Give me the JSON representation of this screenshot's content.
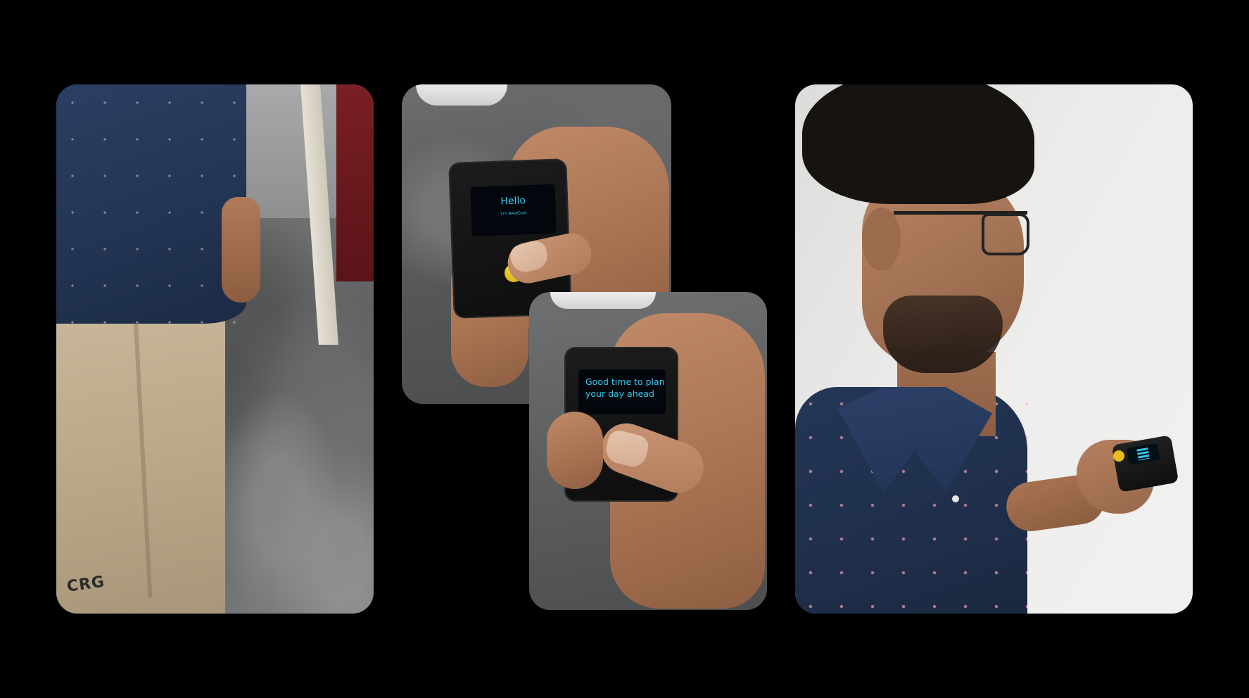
{
  "photos": [
    {
      "id": "pocket-photo"
    },
    {
      "id": "device-hello-photo",
      "screen": {
        "title": "Hello",
        "subtitle": "I'm AwaCool"
      }
    },
    {
      "id": "device-message-photo",
      "screen": {
        "line1": "Good time to plan",
        "line2": "your day ahead"
      }
    },
    {
      "id": "person-photo"
    }
  ],
  "pants_logo": "CRG",
  "colors": {
    "background": "#000000",
    "screen_text": "#35c8ec",
    "device_body": "#141415",
    "button": "#e6be1e"
  }
}
